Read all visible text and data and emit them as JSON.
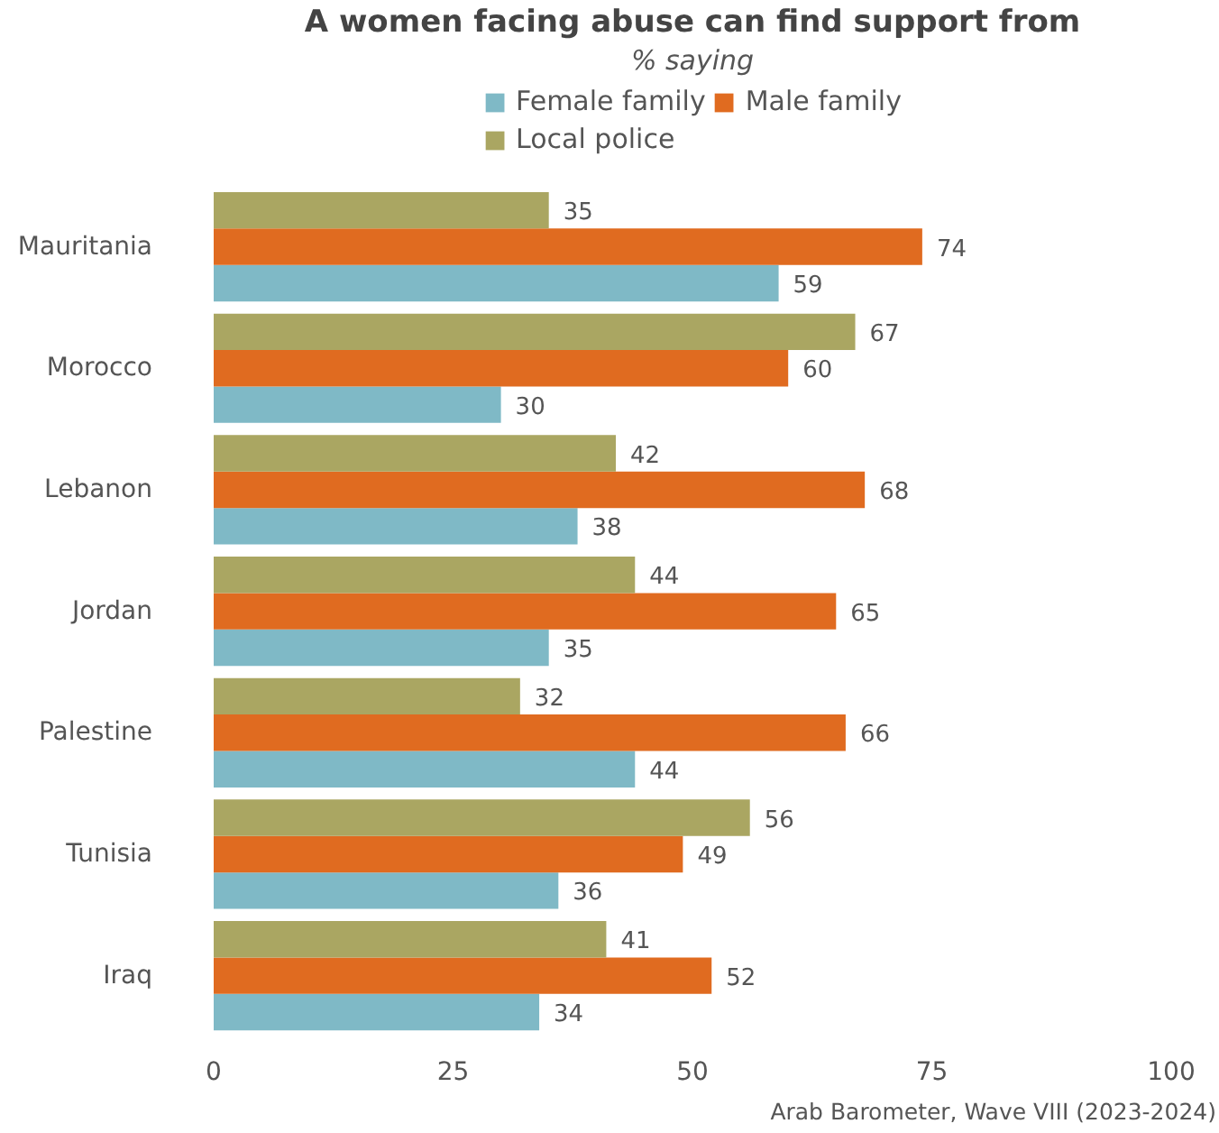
{
  "chart_data": {
    "type": "bar",
    "orientation": "horizontal",
    "title": "A women facing abuse can find support from",
    "subtitle": "% saying",
    "categories": [
      "Mauritania",
      "Morocco",
      "Lebanon",
      "Jordan",
      "Palestine",
      "Tunisia",
      "Iraq"
    ],
    "series": [
      {
        "name": "Female family",
        "color": "#7fb9c6",
        "values": [
          59,
          30,
          38,
          35,
          44,
          36,
          34
        ]
      },
      {
        "name": "Male family",
        "color": "#e06b20",
        "values": [
          74,
          60,
          68,
          65,
          66,
          49,
          52
        ]
      },
      {
        "name": "Local police",
        "color": "#aaa662",
        "values": [
          35,
          67,
          42,
          44,
          32,
          56,
          41
        ]
      }
    ],
    "xlim": [
      0,
      100
    ],
    "xticks": [
      0,
      25,
      50,
      75,
      100
    ],
    "data_labels": true,
    "legend": "top",
    "annotations": [
      "Arab Barometer, Wave VIII (2023-2024)"
    ]
  }
}
